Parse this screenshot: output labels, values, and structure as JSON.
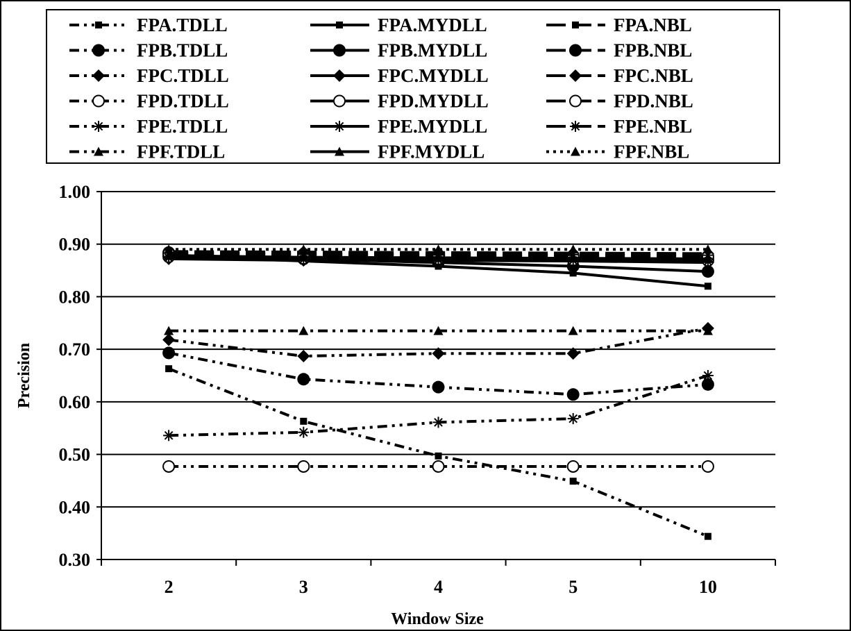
{
  "chart_data": {
    "type": "line",
    "title": "",
    "xlabel": "Window Size",
    "ylabel": "Precision",
    "categories": [
      "2",
      "3",
      "4",
      "5",
      "10"
    ],
    "ylim": [
      0.3,
      1.0
    ],
    "yticks": [
      "0.30",
      "0.40",
      "0.50",
      "0.60",
      "0.70",
      "0.80",
      "0.90",
      "1.00"
    ],
    "grid": "horizontal",
    "legend_position": "top",
    "series": [
      {
        "name": "FPA.TDLL",
        "marker": "square",
        "line": "dash-dot-dot",
        "values": [
          0.663,
          0.563,
          0.497,
          0.449,
          0.344
        ]
      },
      {
        "name": "FPA.MYDLL",
        "marker": "square",
        "line": "solid",
        "values": [
          0.877,
          0.868,
          0.858,
          0.845,
          0.82
        ]
      },
      {
        "name": "FPA.NBL",
        "marker": "square",
        "line": "long-dash",
        "values": [
          0.881,
          0.878,
          0.876,
          0.873,
          0.868
        ]
      },
      {
        "name": "FPB.TDLL",
        "marker": "circle",
        "line": "dash-dot-dot",
        "values": [
          0.693,
          0.643,
          0.628,
          0.614,
          0.633
        ]
      },
      {
        "name": "FPB.MYDLL",
        "marker": "circle",
        "line": "solid",
        "values": [
          0.879,
          0.872,
          0.865,
          0.858,
          0.848
        ]
      },
      {
        "name": "FPB.NBL",
        "marker": "circle",
        "line": "long-dash",
        "values": [
          0.884,
          0.881,
          0.879,
          0.876,
          0.873
        ]
      },
      {
        "name": "FPC.TDLL",
        "marker": "diamond",
        "line": "dash-dot-dot",
        "values": [
          0.718,
          0.687,
          0.692,
          0.692,
          0.74
        ]
      },
      {
        "name": "FPC.MYDLL",
        "marker": "diamond",
        "line": "solid",
        "values": [
          0.872,
          0.869,
          0.869,
          0.868,
          0.865
        ]
      },
      {
        "name": "FPC.NBL",
        "marker": "diamond",
        "line": "long-dash",
        "values": [
          0.886,
          0.885,
          0.884,
          0.883,
          0.882
        ]
      },
      {
        "name": "FPD.TDLL",
        "marker": "open-circle",
        "line": "dash-dot-dot",
        "values": [
          0.477,
          0.477,
          0.477,
          0.477,
          0.477
        ]
      },
      {
        "name": "FPD.MYDLL",
        "marker": "open-circle",
        "line": "solid",
        "values": [
          0.876,
          0.873,
          0.872,
          0.87,
          0.869
        ]
      },
      {
        "name": "FPD.NBL",
        "marker": "open-circle",
        "line": "long-dash",
        "values": [
          0.882,
          0.88,
          0.879,
          0.878,
          0.877
        ]
      },
      {
        "name": "FPE.TDLL",
        "marker": "star",
        "line": "dash-dot-dot",
        "values": [
          0.536,
          0.542,
          0.561,
          0.568,
          0.65
        ]
      },
      {
        "name": "FPE.MYDLL",
        "marker": "star",
        "line": "solid",
        "values": [
          0.874,
          0.871,
          0.87,
          0.869,
          0.867
        ]
      },
      {
        "name": "FPE.NBL",
        "marker": "star",
        "line": "long-dash",
        "values": [
          0.883,
          0.882,
          0.881,
          0.88,
          0.879
        ]
      },
      {
        "name": "FPF.TDLL",
        "marker": "triangle",
        "line": "dash-dot-dot",
        "values": [
          0.735,
          0.735,
          0.735,
          0.735,
          0.735
        ]
      },
      {
        "name": "FPF.MYDLL",
        "marker": "triangle",
        "line": "solid",
        "values": [
          0.878,
          0.875,
          0.874,
          0.873,
          0.872
        ]
      },
      {
        "name": "FPF.NBL",
        "marker": "triangle",
        "line": "dotted",
        "values": [
          0.89,
          0.89,
          0.89,
          0.89,
          0.89
        ]
      }
    ]
  }
}
